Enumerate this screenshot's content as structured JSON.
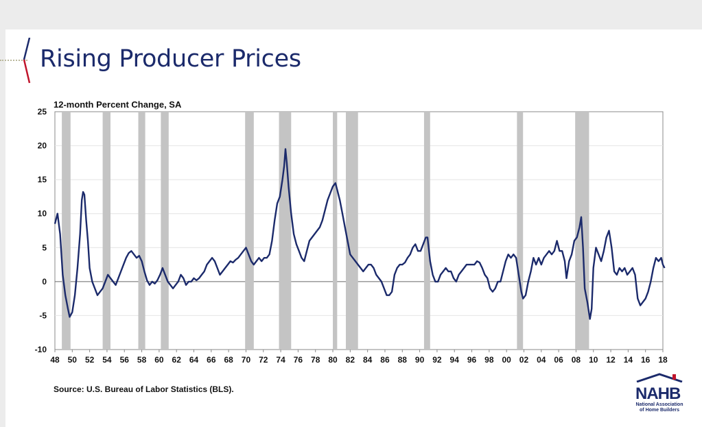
{
  "slide": {
    "title": "Rising Producer Prices",
    "subtitle": "12-month Percent Change, SA",
    "source": "Source: U.S. Bureau of Labor Statistics (BLS).",
    "logo": {
      "letters": "NAHB",
      "caption_line1": "National Association",
      "caption_line2": "of Home Builders"
    }
  },
  "colors": {
    "title": "#1b2a6b",
    "series": "#1b2a6b",
    "recession": "#c4c4c4",
    "accent_red": "#c0142b"
  },
  "chart_data": {
    "type": "line",
    "title": "",
    "ylabel": "12-month Percent Change, SA",
    "xlim": [
      1948,
      2018
    ],
    "ylim": [
      -10,
      25
    ],
    "yticks": [
      -10,
      -5,
      0,
      5,
      10,
      15,
      20,
      25
    ],
    "xticks": [
      "48",
      "50",
      "52",
      "54",
      "56",
      "58",
      "60",
      "62",
      "64",
      "66",
      "68",
      "70",
      "72",
      "74",
      "76",
      "78",
      "80",
      "82",
      "84",
      "86",
      "88",
      "90",
      "92",
      "94",
      "96",
      "98",
      "00",
      "02",
      "04",
      "06",
      "08",
      "10",
      "12",
      "14",
      "16",
      "18"
    ],
    "grid": true,
    "recessions": [
      [
        1948.8,
        1949.8
      ],
      [
        1953.5,
        1954.4
      ],
      [
        1957.6,
        1958.4
      ],
      [
        1960.2,
        1961.1
      ],
      [
        1969.9,
        1970.9
      ],
      [
        1973.8,
        1975.2
      ],
      [
        1980.0,
        1980.5
      ],
      [
        1981.5,
        1982.9
      ],
      [
        1990.5,
        1991.2
      ],
      [
        2001.2,
        2001.9
      ],
      [
        2007.9,
        2009.5
      ]
    ],
    "series": [
      {
        "points": [
          [
            1948.0,
            8.5
          ],
          [
            1948.3,
            10
          ],
          [
            1948.6,
            7
          ],
          [
            1948.9,
            1
          ],
          [
            1949.2,
            -2
          ],
          [
            1949.5,
            -4
          ],
          [
            1949.7,
            -5.2
          ],
          [
            1950.0,
            -4.5
          ],
          [
            1950.3,
            -2
          ],
          [
            1950.6,
            2
          ],
          [
            1950.9,
            7
          ],
          [
            1951.1,
            12
          ],
          [
            1951.25,
            13.2
          ],
          [
            1951.4,
            12.8
          ],
          [
            1951.6,
            9
          ],
          [
            1951.8,
            6
          ],
          [
            1952.0,
            2
          ],
          [
            1952.3,
            0
          ],
          [
            1952.6,
            -1
          ],
          [
            1952.9,
            -2
          ],
          [
            1953.2,
            -1.5
          ],
          [
            1953.5,
            -1
          ],
          [
            1953.8,
            0
          ],
          [
            1954.1,
            1
          ],
          [
            1954.4,
            0.5
          ],
          [
            1954.7,
            0
          ],
          [
            1955.0,
            -0.5
          ],
          [
            1955.3,
            0.5
          ],
          [
            1955.6,
            1.5
          ],
          [
            1955.9,
            2.5
          ],
          [
            1956.2,
            3.5
          ],
          [
            1956.5,
            4.2
          ],
          [
            1956.8,
            4.5
          ],
          [
            1957.1,
            4
          ],
          [
            1957.4,
            3.5
          ],
          [
            1957.7,
            3.8
          ],
          [
            1958.0,
            3
          ],
          [
            1958.3,
            1.5
          ],
          [
            1958.6,
            0.2
          ],
          [
            1958.9,
            -0.5
          ],
          [
            1959.2,
            0
          ],
          [
            1959.5,
            -0.3
          ],
          [
            1959.8,
            0.2
          ],
          [
            1960.1,
            1
          ],
          [
            1960.4,
            2
          ],
          [
            1960.7,
            1
          ],
          [
            1961.0,
            0
          ],
          [
            1961.3,
            -0.5
          ],
          [
            1961.6,
            -1
          ],
          [
            1961.9,
            -0.5
          ],
          [
            1962.2,
            0
          ],
          [
            1962.5,
            1
          ],
          [
            1962.8,
            0.5
          ],
          [
            1963.1,
            -0.5
          ],
          [
            1963.4,
            0
          ],
          [
            1963.7,
            0
          ],
          [
            1964.0,
            0.5
          ],
          [
            1964.3,
            0.2
          ],
          [
            1964.6,
            0.5
          ],
          [
            1964.9,
            1
          ],
          [
            1965.2,
            1.5
          ],
          [
            1965.5,
            2.5
          ],
          [
            1965.8,
            3
          ],
          [
            1966.1,
            3.5
          ],
          [
            1966.4,
            3
          ],
          [
            1966.7,
            2
          ],
          [
            1967.0,
            1
          ],
          [
            1967.3,
            1.5
          ],
          [
            1967.6,
            2
          ],
          [
            1967.9,
            2.5
          ],
          [
            1968.2,
            3
          ],
          [
            1968.5,
            2.8
          ],
          [
            1968.8,
            3.2
          ],
          [
            1969.1,
            3.5
          ],
          [
            1969.4,
            4
          ],
          [
            1969.7,
            4.5
          ],
          [
            1970.0,
            5
          ],
          [
            1970.3,
            4
          ],
          [
            1970.6,
            3
          ],
          [
            1970.9,
            2.5
          ],
          [
            1971.2,
            3
          ],
          [
            1971.5,
            3.5
          ],
          [
            1971.8,
            3
          ],
          [
            1972.1,
            3.5
          ],
          [
            1972.4,
            3.5
          ],
          [
            1972.7,
            4
          ],
          [
            1973.0,
            6
          ],
          [
            1973.3,
            9
          ],
          [
            1973.6,
            11.5
          ],
          [
            1973.9,
            12.5
          ],
          [
            1974.2,
            15
          ],
          [
            1974.4,
            17
          ],
          [
            1974.55,
            19.5
          ],
          [
            1974.7,
            17.5
          ],
          [
            1974.9,
            14
          ],
          [
            1975.2,
            10
          ],
          [
            1975.5,
            7
          ],
          [
            1975.8,
            5.5
          ],
          [
            1976.1,
            4.5
          ],
          [
            1976.4,
            3.5
          ],
          [
            1976.7,
            3
          ],
          [
            1977.0,
            4.5
          ],
          [
            1977.3,
            6
          ],
          [
            1977.6,
            6.5
          ],
          [
            1977.9,
            7
          ],
          [
            1978.2,
            7.5
          ],
          [
            1978.5,
            8
          ],
          [
            1978.8,
            9
          ],
          [
            1979.1,
            10.5
          ],
          [
            1979.4,
            12
          ],
          [
            1979.7,
            13
          ],
          [
            1980.0,
            14
          ],
          [
            1980.3,
            14.5
          ],
          [
            1980.5,
            13.5
          ],
          [
            1980.8,
            12
          ],
          [
            1981.1,
            10
          ],
          [
            1981.4,
            8
          ],
          [
            1981.7,
            6
          ],
          [
            1982.0,
            4
          ],
          [
            1982.3,
            3.5
          ],
          [
            1982.6,
            3
          ],
          [
            1982.9,
            2.5
          ],
          [
            1983.2,
            2
          ],
          [
            1983.5,
            1.5
          ],
          [
            1983.8,
            2
          ],
          [
            1984.1,
            2.5
          ],
          [
            1984.4,
            2.5
          ],
          [
            1984.7,
            2
          ],
          [
            1985.0,
            1
          ],
          [
            1985.3,
            0.5
          ],
          [
            1985.6,
            0
          ],
          [
            1985.9,
            -1
          ],
          [
            1986.2,
            -2
          ],
          [
            1986.5,
            -2
          ],
          [
            1986.8,
            -1.5
          ],
          [
            1987.1,
            1
          ],
          [
            1987.4,
            2
          ],
          [
            1987.7,
            2.5
          ],
          [
            1988.0,
            2.5
          ],
          [
            1988.3,
            2.8
          ],
          [
            1988.6,
            3.5
          ],
          [
            1988.9,
            4
          ],
          [
            1989.2,
            5
          ],
          [
            1989.5,
            5.5
          ],
          [
            1989.8,
            4.5
          ],
          [
            1990.1,
            4.5
          ],
          [
            1990.4,
            5.5
          ],
          [
            1990.7,
            6.5
          ],
          [
            1990.9,
            6.5
          ],
          [
            1991.2,
            3
          ],
          [
            1991.5,
            1
          ],
          [
            1991.8,
            0
          ],
          [
            1992.1,
            0
          ],
          [
            1992.4,
            1
          ],
          [
            1992.7,
            1.5
          ],
          [
            1993.0,
            2
          ],
          [
            1993.3,
            1.5
          ],
          [
            1993.6,
            1.5
          ],
          [
            1993.9,
            0.5
          ],
          [
            1994.2,
            0
          ],
          [
            1994.5,
            1
          ],
          [
            1994.8,
            1.5
          ],
          [
            1995.1,
            2
          ],
          [
            1995.4,
            2.5
          ],
          [
            1995.7,
            2.5
          ],
          [
            1996.0,
            2.5
          ],
          [
            1996.3,
            2.5
          ],
          [
            1996.6,
            3
          ],
          [
            1996.9,
            2.8
          ],
          [
            1997.2,
            2
          ],
          [
            1997.5,
            1
          ],
          [
            1997.8,
            0.5
          ],
          [
            1998.1,
            -1
          ],
          [
            1998.4,
            -1.5
          ],
          [
            1998.7,
            -1
          ],
          [
            1999.0,
            0
          ],
          [
            1999.3,
            0
          ],
          [
            1999.6,
            1.5
          ],
          [
            1999.9,
            3
          ],
          [
            2000.2,
            4
          ],
          [
            2000.5,
            3.5
          ],
          [
            2000.8,
            4
          ],
          [
            2001.1,
            3.5
          ],
          [
            2001.4,
            1
          ],
          [
            2001.7,
            -1.5
          ],
          [
            2001.9,
            -2.5
          ],
          [
            2002.2,
            -2
          ],
          [
            2002.5,
            0
          ],
          [
            2002.8,
            1.5
          ],
          [
            2003.1,
            3.5
          ],
          [
            2003.4,
            2.5
          ],
          [
            2003.7,
            3.5
          ],
          [
            2004.0,
            2.5
          ],
          [
            2004.3,
            3.5
          ],
          [
            2004.6,
            4
          ],
          [
            2004.9,
            4.5
          ],
          [
            2005.2,
            4
          ],
          [
            2005.5,
            4.5
          ],
          [
            2005.8,
            6
          ],
          [
            2006.1,
            4.5
          ],
          [
            2006.4,
            4.5
          ],
          [
            2006.7,
            3
          ],
          [
            2006.9,
            0.5
          ],
          [
            2007.2,
            3
          ],
          [
            2007.5,
            4
          ],
          [
            2007.8,
            6
          ],
          [
            2008.1,
            6.5
          ],
          [
            2008.4,
            8
          ],
          [
            2008.6,
            9.5
          ],
          [
            2008.8,
            5
          ],
          [
            2009.0,
            -1
          ],
          [
            2009.3,
            -3
          ],
          [
            2009.6,
            -5.5
          ],
          [
            2009.8,
            -4
          ],
          [
            2010.0,
            2
          ],
          [
            2010.3,
            5
          ],
          [
            2010.6,
            4
          ],
          [
            2010.9,
            3
          ],
          [
            2011.2,
            4.5
          ],
          [
            2011.5,
            6.5
          ],
          [
            2011.8,
            7.5
          ],
          [
            2012.1,
            5
          ],
          [
            2012.4,
            1.5
          ],
          [
            2012.7,
            1
          ],
          [
            2013.0,
            2
          ],
          [
            2013.3,
            1.5
          ],
          [
            2013.6,
            2
          ],
          [
            2013.9,
            1
          ],
          [
            2014.2,
            1.5
          ],
          [
            2014.5,
            2
          ],
          [
            2014.8,
            1
          ],
          [
            2015.1,
            -2.5
          ],
          [
            2015.4,
            -3.5
          ],
          [
            2015.7,
            -3
          ],
          [
            2016.0,
            -2.5
          ],
          [
            2016.3,
            -1.5
          ],
          [
            2016.6,
            0
          ],
          [
            2016.9,
            2
          ],
          [
            2017.2,
            3.5
          ],
          [
            2017.5,
            3
          ],
          [
            2017.8,
            3.5
          ],
          [
            2018.0,
            2.5
          ],
          [
            2018.2,
            2
          ]
        ]
      }
    ]
  }
}
